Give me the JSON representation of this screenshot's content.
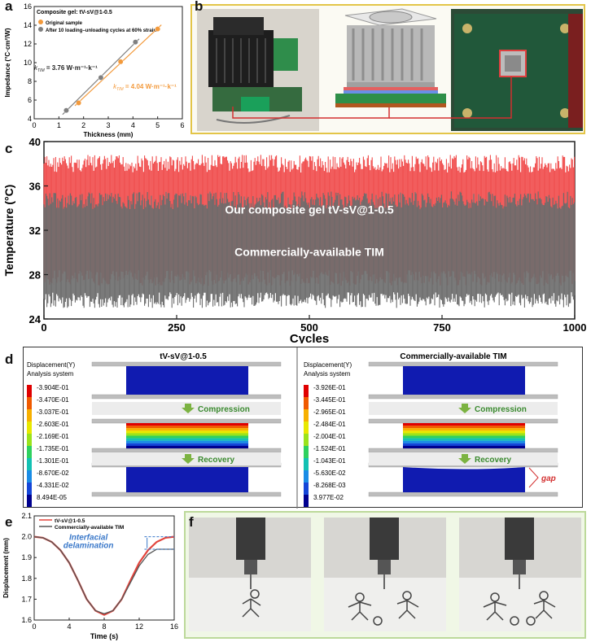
{
  "panels": {
    "a": "a",
    "b": "b",
    "c": "c",
    "d": "d",
    "e": "e",
    "f": "f"
  },
  "panel_a": {
    "title": "Composite gel: tV-sV@1-0.5",
    "legend": [
      "Original sample",
      "After 10 loading–unloading cycles at 60% strain"
    ],
    "ylabel": "Impedance (°C·cm²/W)",
    "xlabel": "Thickness (mm)",
    "annotations": {
      "k_gray": "k",
      "k_gray_sub": "TIM",
      "k_gray_val": " = 3.76 W·m⁻¹·k⁻¹",
      "k_orange": "k",
      "k_orange_sub": "TIM",
      "k_orange_val": " = 4.04 W·m⁻¹·k⁻¹"
    },
    "colors": {
      "orange": "#f39a3c",
      "gray": "#7f7f7f"
    }
  },
  "panel_c": {
    "ylabel": "Temperature (°C)",
    "xlabel": "Cycles",
    "top_label": "Our composite gel tV-sV@1-0.5",
    "bottom_label": "Commercially-available TIM",
    "colors": {
      "top": "#f04b4b",
      "bottom": "#6b6b6b"
    }
  },
  "panel_d": {
    "left_title": "tV-sV@1-0.5",
    "right_title": "Commercially-available TIM",
    "legend_title_1": "Displacement(Y)",
    "legend_title_2": "Analysis system",
    "left_legend": [
      "-3.904E-01",
      "-3.470E-01",
      "-3.037E-01",
      "-2.603E-01",
      "-2.169E-01",
      "-1.735E-01",
      "-1.301E-01",
      "-8.670E-02",
      "-4.331E-02",
      "8.494E-05"
    ],
    "right_legend": [
      "-3.926E-01",
      "-3.445E-01",
      "-2.965E-01",
      "-2.484E-01",
      "-2.004E-01",
      "-1.524E-01",
      "-1.043E-01",
      "-5.630E-02",
      "-8.268E-03",
      "3.977E-02"
    ],
    "compression": "Compression",
    "recovery": "Recovery",
    "gap": "gap",
    "scale_colors": [
      "#e00000",
      "#f05a00",
      "#f7b000",
      "#e8e800",
      "#9be31c",
      "#2fd15f",
      "#13c1b3",
      "#1a8ce6",
      "#1546d8",
      "#00008f"
    ]
  },
  "panel_e": {
    "xlabel": "Time (s)",
    "ylabel": "Displacement (mm)",
    "annotation_line1": "Interfacial",
    "annotation_line2": "delamination",
    "colors": {
      "red": "#e2443c",
      "dark": "#555555",
      "annot": "#3a78c9"
    }
  },
  "chart_data": [
    {
      "type": "scatter",
      "xlim": [
        0,
        6
      ],
      "ylim": [
        4,
        16
      ],
      "xticks": [
        0,
        1,
        2,
        3,
        4,
        5,
        6
      ],
      "yticks": [
        4,
        6,
        8,
        10,
        12,
        14,
        16
      ],
      "series": [
        {
          "name": "Original sample",
          "x": [
            1.8,
            3.5,
            5.0
          ],
          "y": [
            5.7,
            10.1,
            13.6
          ],
          "fit": true
        },
        {
          "name": "After 10 loading–unloading cycles at 60% strain",
          "x": [
            1.3,
            2.7,
            4.1
          ],
          "y": [
            4.9,
            8.4,
            12.2
          ],
          "fit": true
        }
      ]
    },
    {
      "type": "line",
      "xlim": [
        0,
        1000
      ],
      "ylim": [
        24,
        40
      ],
      "xticks": [
        0,
        250,
        500,
        750,
        1000
      ],
      "yticks": [
        24,
        28,
        32,
        36,
        40
      ],
      "series": [
        {
          "name": "Our composite gel tV-sV@1-0.5",
          "min": 27,
          "max": 38.8
        },
        {
          "name": "Commercially-available TIM",
          "min": 25,
          "max": 35.5
        }
      ]
    },
    {
      "type": "line",
      "xlim": [
        0,
        16
      ],
      "ylim": [
        1.6,
        2.1
      ],
      "xticks": [
        0,
        4,
        8,
        12,
        16
      ],
      "yticks": [
        1.6,
        1.7,
        1.8,
        1.9,
        2.0,
        2.1
      ],
      "series": [
        {
          "name": "tV-sV@1-0.5",
          "x": [
            0,
            1,
            2,
            3,
            4,
            5,
            6,
            7,
            8,
            9,
            10,
            11,
            12,
            13,
            14,
            15,
            16
          ],
          "y": [
            2.0,
            1.995,
            1.975,
            1.935,
            1.875,
            1.79,
            1.7,
            1.645,
            1.625,
            1.645,
            1.7,
            1.79,
            1.875,
            1.935,
            1.975,
            1.995,
            2.0
          ]
        },
        {
          "name": "Commercially-available TIM",
          "x": [
            0,
            1,
            2,
            3,
            4,
            5,
            6,
            7,
            8,
            9,
            10,
            11,
            12,
            13,
            14,
            15,
            16
          ],
          "y": [
            2.0,
            1.995,
            1.975,
            1.935,
            1.875,
            1.79,
            1.7,
            1.645,
            1.63,
            1.645,
            1.7,
            1.78,
            1.86,
            1.915,
            1.94,
            1.94,
            1.94
          ]
        }
      ]
    }
  ]
}
